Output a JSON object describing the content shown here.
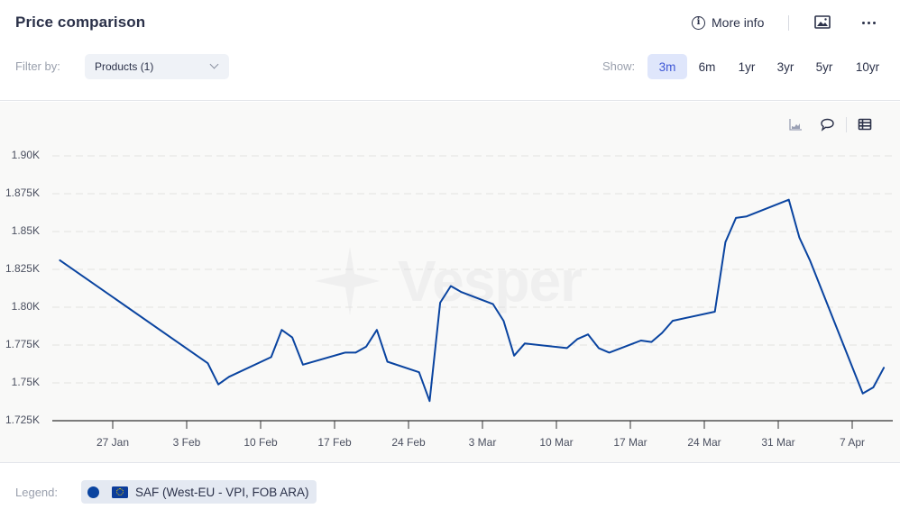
{
  "header": {
    "title": "Price comparison",
    "more_info_label": "More info",
    "icons": {
      "info": "info-circle-icon",
      "image": "image-icon",
      "more": "more-horizontal-icon"
    }
  },
  "filters": {
    "filter_label": "Filter by:",
    "products_select": "Products (1)",
    "show_label": "Show:",
    "ranges": [
      {
        "label": "3m",
        "active": true
      },
      {
        "label": "6m",
        "active": false
      },
      {
        "label": "1yr",
        "active": false
      },
      {
        "label": "3yr",
        "active": false
      },
      {
        "label": "5yr",
        "active": false
      },
      {
        "label": "10yr",
        "active": false
      }
    ]
  },
  "chart_tools": {
    "icons": [
      "area-chart-icon",
      "comment-icon",
      "table-icon"
    ]
  },
  "watermark": "Vesper",
  "legend": {
    "label": "Legend:",
    "items": [
      {
        "name": "SAF (West-EU - VPI, FOB ARA)",
        "color": "#0a44a0",
        "flag": "eu-flag-icon"
      }
    ]
  },
  "colors": {
    "series": "#0a44a0",
    "accent": "#3f58d6",
    "active_bg": "#dfe6fb"
  },
  "chart_data": {
    "type": "line",
    "title": "Price comparison",
    "xlabel": "",
    "ylabel": "",
    "ylim": [
      1.725,
      1.9
    ],
    "y_ticks": [
      "1.90K",
      "1.875K",
      "1.85K",
      "1.825K",
      "1.80K",
      "1.775K",
      "1.75K",
      "1.725K"
    ],
    "y_tick_values": [
      1.9,
      1.875,
      1.85,
      1.825,
      1.8,
      1.775,
      1.75,
      1.725
    ],
    "x_ticks": [
      "27 Jan",
      "3 Feb",
      "10 Feb",
      "17 Feb",
      "24 Feb",
      "3 Mar",
      "10 Mar",
      "17 Mar",
      "24 Mar",
      "31 Mar",
      "7 Apr"
    ],
    "grid": {
      "horizontal": true,
      "style": "dashed"
    },
    "legend_position": "bottom",
    "series": [
      {
        "name": "SAF (West-EU - VPI, FOB ARA)",
        "color": "#0a44a0",
        "x": [
          "22 Jan",
          "5 Feb",
          "6 Feb",
          "7 Feb",
          "11 Feb",
          "12 Feb",
          "13 Feb",
          "14 Feb",
          "18 Feb",
          "19 Feb",
          "20 Feb",
          "21 Feb",
          "22 Feb",
          "25 Feb",
          "26 Feb",
          "27 Feb",
          "28 Feb",
          "1 Mar",
          "4 Mar",
          "5 Mar",
          "6 Mar",
          "7 Mar",
          "11 Mar",
          "12 Mar",
          "13 Mar",
          "14 Mar",
          "15 Mar",
          "18 Mar",
          "19 Mar",
          "20 Mar",
          "21 Mar",
          "25 Mar",
          "26 Mar",
          "27 Mar",
          "28 Mar",
          "1 Apr",
          "2 Apr",
          "3 Apr",
          "8 Apr",
          "9 Apr",
          "10 Apr"
        ],
        "values": [
          1.831,
          1.763,
          1.749,
          1.754,
          1.767,
          1.785,
          1.78,
          1.762,
          1.77,
          1.77,
          1.774,
          1.785,
          1.764,
          1.757,
          1.738,
          1.803,
          1.814,
          1.81,
          1.802,
          1.791,
          1.768,
          1.776,
          1.773,
          1.779,
          1.782,
          1.773,
          1.77,
          1.778,
          1.777,
          1.783,
          1.791,
          1.797,
          1.843,
          1.859,
          1.86,
          1.871,
          1.846,
          1.831,
          1.743,
          1.747,
          1.76
        ],
        "unit": "K"
      }
    ]
  }
}
